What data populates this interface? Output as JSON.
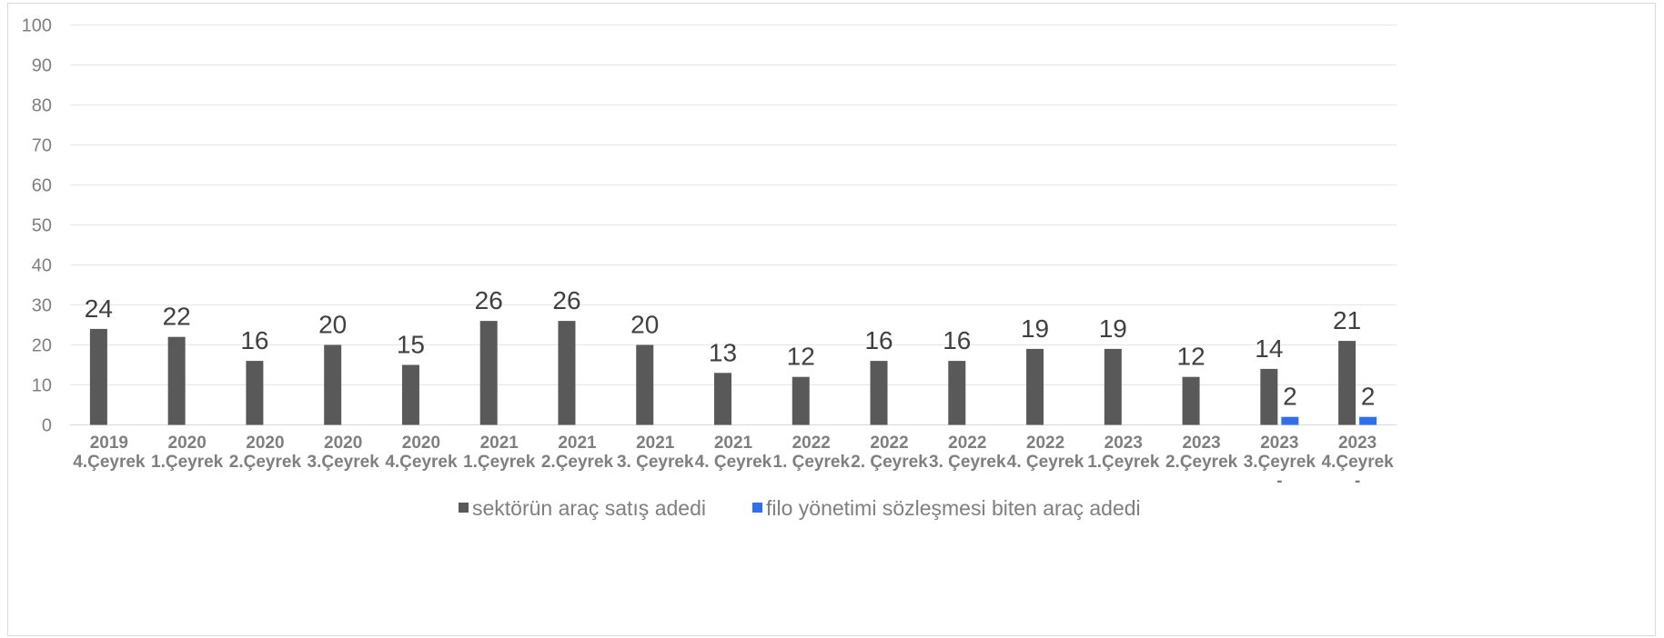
{
  "chart_data": {
    "type": "bar",
    "title": "",
    "xlabel": "",
    "ylabel": "",
    "ylim": [
      0,
      100
    ],
    "yticks": [
      0,
      10,
      20,
      30,
      40,
      50,
      60,
      70,
      80,
      90,
      100
    ],
    "grid": true,
    "legend_position": "bottom",
    "categories": [
      [
        "2019",
        "4.Çeyrek"
      ],
      [
        "2020",
        "1.Çeyrek"
      ],
      [
        "2020",
        "2.Çeyrek"
      ],
      [
        "2020",
        "3.Çeyrek"
      ],
      [
        "2020",
        "4.Çeyrek"
      ],
      [
        "2021",
        "1.Çeyrek"
      ],
      [
        "2021",
        "2.Çeyrek"
      ],
      [
        "2021",
        "3. Çeyrek"
      ],
      [
        "2021",
        "4. Çeyrek"
      ],
      [
        "2022",
        "1. Çeyrek"
      ],
      [
        "2022",
        "2. Çeyrek"
      ],
      [
        "2022",
        "3. Çeyrek"
      ],
      [
        "2022",
        "4. Çeyrek"
      ],
      [
        "2023",
        "1.Çeyrek"
      ],
      [
        "2023",
        "2.Çeyrek"
      ],
      [
        "2023",
        "3.Çeyrek",
        "-"
      ],
      [
        "2023",
        "4.Çeyrek",
        "-"
      ]
    ],
    "series": [
      {
        "name": "sektörün araç satış adedi",
        "color": "#595959",
        "values": [
          24,
          22,
          16,
          20,
          15,
          26,
          26,
          20,
          13,
          12,
          16,
          16,
          19,
          19,
          12,
          14,
          21
        ],
        "labels": [
          "24",
          "22",
          "16",
          "20",
          "15",
          "26",
          "26",
          "20",
          "13",
          "12",
          "16",
          "16",
          "19",
          "19",
          "12",
          "14",
          "21"
        ]
      },
      {
        "name": "filo yönetimi sözleşmesi biten araç adedi",
        "color": "#2f6fed",
        "values": [
          null,
          null,
          null,
          null,
          null,
          null,
          null,
          null,
          null,
          null,
          null,
          null,
          null,
          null,
          null,
          2,
          2
        ],
        "labels": [
          "",
          "",
          "",
          "",
          "",
          "",
          "",
          "",
          "",
          "",
          "",
          "",
          "",
          "",
          "",
          "2",
          "2"
        ]
      }
    ]
  }
}
